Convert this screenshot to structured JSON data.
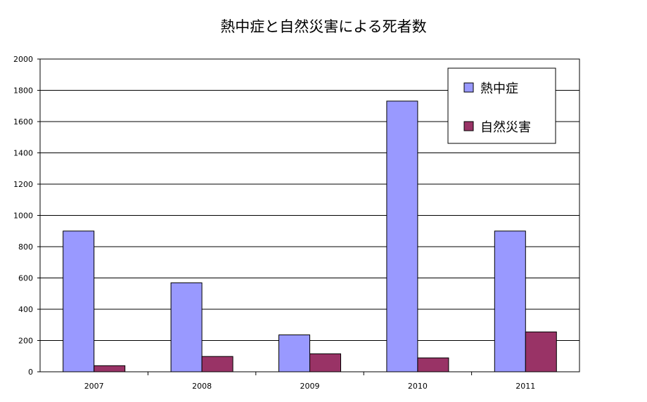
{
  "chart_data": {
    "type": "bar",
    "title": "熱中症と自然災害による死者数",
    "xlabel": "",
    "ylabel": "",
    "categories": [
      "2007",
      "2008",
      "2009",
      "2010",
      "2011"
    ],
    "series": [
      {
        "name": "熱中症",
        "color": "#9999ff",
        "values": [
          900,
          569,
          236,
          1731,
          900
        ]
      },
      {
        "name": "自然災害",
        "color": "#993366",
        "values": [
          39,
          98,
          115,
          89,
          255
        ]
      }
    ],
    "ylim": [
      0,
      2000
    ],
    "yticks": [
      "0",
      "200",
      "400",
      "600",
      "800",
      "1000",
      "1200",
      "1400",
      "1600",
      "1800",
      "2000"
    ],
    "grid": true,
    "legend_position": "top-right"
  }
}
